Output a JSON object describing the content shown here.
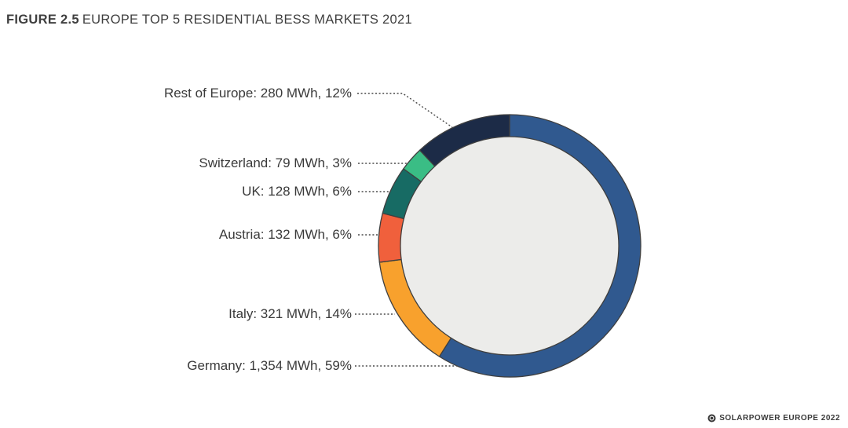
{
  "figure": {
    "number": "FIGURE 2.5",
    "title_rest": "EUROPE TOP 5 RESIDENTIAL BESS MARKETS 2021"
  },
  "chart_data": {
    "type": "pie",
    "subtype": "donut",
    "title": "FIGURE 2.5 EUROPE TOP 5 RESIDENTIAL BESS MARKETS 2021",
    "unit": "MWh",
    "start_angle_deg": 0,
    "direction": "clockwise-from-top",
    "categories": [
      "Germany",
      "Italy",
      "Austria",
      "UK",
      "Switzerland",
      "Rest of Europe"
    ],
    "values_mwh": [
      1354,
      321,
      132,
      128,
      79,
      280
    ],
    "values_pct": [
      59,
      14,
      6,
      6,
      3,
      12
    ],
    "slices": [
      {
        "name": "Germany",
        "mwh": "1,354",
        "pct": 59,
        "color": "#30598F",
        "label": "Germany: 1,354 MWh, 59%"
      },
      {
        "name": "Italy",
        "mwh": "321",
        "pct": 14,
        "color": "#F8A12D",
        "label": "Italy: 321 MWh, 14%"
      },
      {
        "name": "Austria",
        "mwh": "132",
        "pct": 6,
        "color": "#F0603C",
        "label": "Austria: 132 MWh, 6%"
      },
      {
        "name": "UK",
        "mwh": "128",
        "pct": 6,
        "color": "#176B64",
        "label": "UK: 128 MWh, 6%"
      },
      {
        "name": "Switzerland",
        "mwh": "79",
        "pct": 3,
        "color": "#3ABD85",
        "label": "Switzerland: 79 MWh, 3%"
      },
      {
        "name": "Rest of Europe",
        "mwh": "280",
        "pct": 12,
        "color": "#1C2B47",
        "label": "Rest of Europe: 280 MWh, 12%"
      }
    ],
    "hole_color": "#ECECEA",
    "outline_color": "#3F3F3F",
    "legend_position": "left-callouts",
    "grid": false
  },
  "footer": {
    "logo": "solarpower-europe-mark",
    "text": "SOLARPOWER EUROPE 2022"
  }
}
